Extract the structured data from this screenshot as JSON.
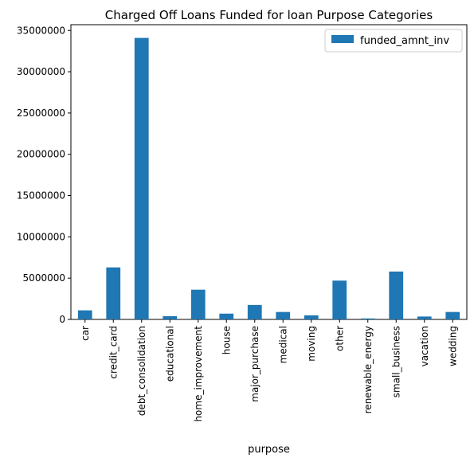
{
  "chart_data": {
    "type": "bar",
    "title": "Charged Off Loans Funded for loan Purpose Categories",
    "xlabel": "purpose",
    "ylabel": "",
    "ylim": [
      0,
      35700000
    ],
    "yticks": [
      0,
      5000000,
      10000000,
      15000000,
      20000000,
      25000000,
      30000000,
      35000000
    ],
    "ytick_labels": [
      "0",
      "5000000",
      "10000000",
      "15000000",
      "20000000",
      "25000000",
      "30000000",
      "35000000"
    ],
    "categories": [
      "car",
      "credit_card",
      "debt_consolidation",
      "educational",
      "home_improvement",
      "house",
      "major_purchase",
      "medical",
      "moving",
      "other",
      "renewable_energy",
      "small_business",
      "vacation",
      "wedding"
    ],
    "series": [
      {
        "name": "funded_amnt_inv",
        "color": "#1f77b4",
        "values": [
          1100000,
          6300000,
          34100000,
          400000,
          3600000,
          700000,
          1750000,
          900000,
          500000,
          4700000,
          120000,
          5800000,
          350000,
          900000
        ]
      }
    ],
    "legend": {
      "position": "top-right",
      "entries": [
        "funded_amnt_inv"
      ]
    },
    "grid": false
  }
}
